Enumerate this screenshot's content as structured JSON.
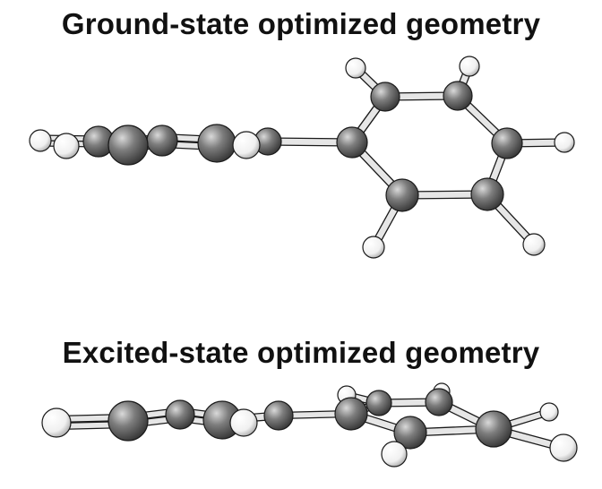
{
  "panels": {
    "ground": {
      "title": "Ground-state optimized geometry"
    },
    "excited": {
      "title": "Excited-state optimized geometry"
    }
  },
  "colors": {
    "background": "#ffffff",
    "carbon": "#7a7a7a",
    "hydrogen": "#f2f2f2",
    "bond": "#e6e6e6",
    "outline": "#1a1a1a",
    "title": "#111111"
  },
  "legend": {
    "carbon_atom": "gray sphere",
    "hydrogen_atom": "white sphere"
  }
}
